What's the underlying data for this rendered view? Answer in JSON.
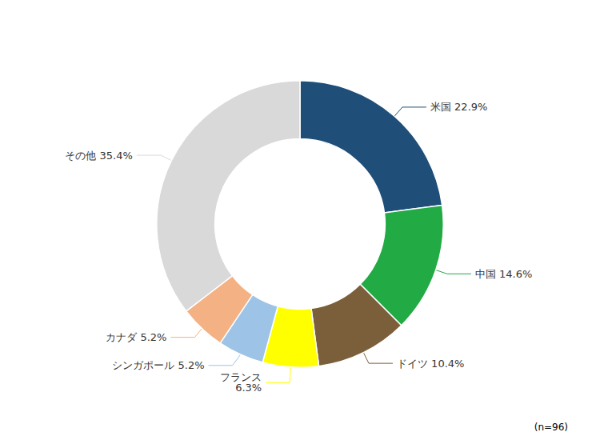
{
  "chart_data": {
    "type": "donut",
    "categories": [
      "米国",
      "中国",
      "ドイツ",
      "フランス",
      "シンガポール",
      "カナダ",
      "その他"
    ],
    "values": [
      22.9,
      14.6,
      10.4,
      6.3,
      5.2,
      5.2,
      35.4
    ],
    "value_labels": [
      "米国 22.9%",
      "中国 14.6%",
      "ドイツ 10.4%",
      "フランス\n6.3%",
      "シンガポール 5.2%",
      "カナダ 5.2%",
      "その他 35.4%"
    ],
    "colors": [
      "#1f4e79",
      "#22aa44",
      "#7b5e3a",
      "#ffff00",
      "#9dc3e6",
      "#f4b183",
      "#d9d9d9"
    ],
    "data_labels": true,
    "annotations": [
      "(n=96)"
    ]
  }
}
